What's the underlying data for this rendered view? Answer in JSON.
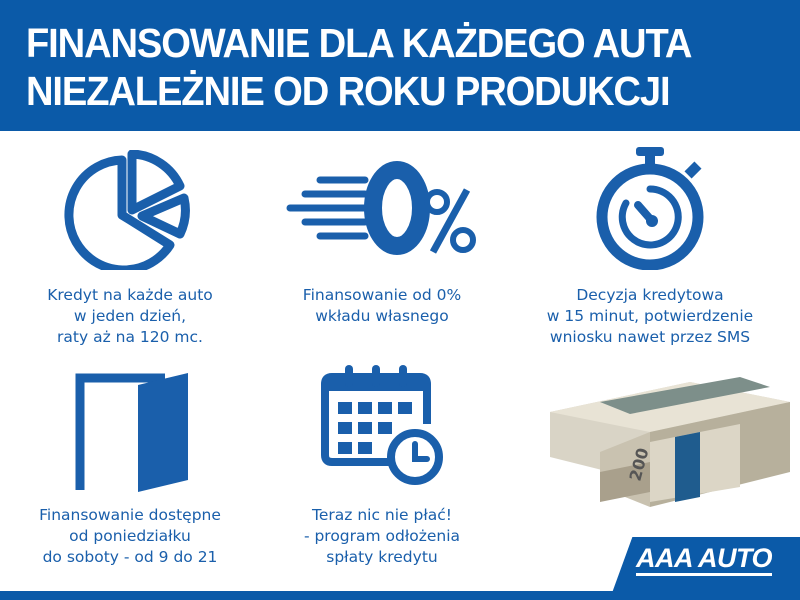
{
  "header": {
    "line1": "FINANSOWANIE DLA KAŻDEGO AUTA",
    "line2": "NIEZALEŻNIE OD ROKU PRODUKCJI"
  },
  "features": [
    {
      "icon": "pie-chart-icon",
      "lines": [
        "Kredyt na każde auto",
        "w jeden dzień,",
        "raty aż na 120 mc."
      ]
    },
    {
      "icon": "zero-percent-icon",
      "lines": [
        "Finansowanie od 0%",
        "wkładu własnego"
      ]
    },
    {
      "icon": "stopwatch-icon",
      "lines": [
        "Decyzja kredytowa",
        "w 15 minut, potwierdzenie",
        "wniosku nawet przez SMS"
      ]
    },
    {
      "icon": "open-door-icon",
      "lines": [
        "Finansowanie dostępne",
        "od poniedziałku",
        "do soboty - od 9 do 21"
      ]
    },
    {
      "icon": "calendar-clock-icon",
      "lines": [
        "Teraz nic nie płać!",
        "- program odłożenia",
        "spłaty kredytu"
      ]
    }
  ],
  "money_label": "200",
  "logo": "AAA AUTO",
  "colors": {
    "brand_blue": "#0b5aa8",
    "icon_blue": "#1a5fab"
  }
}
